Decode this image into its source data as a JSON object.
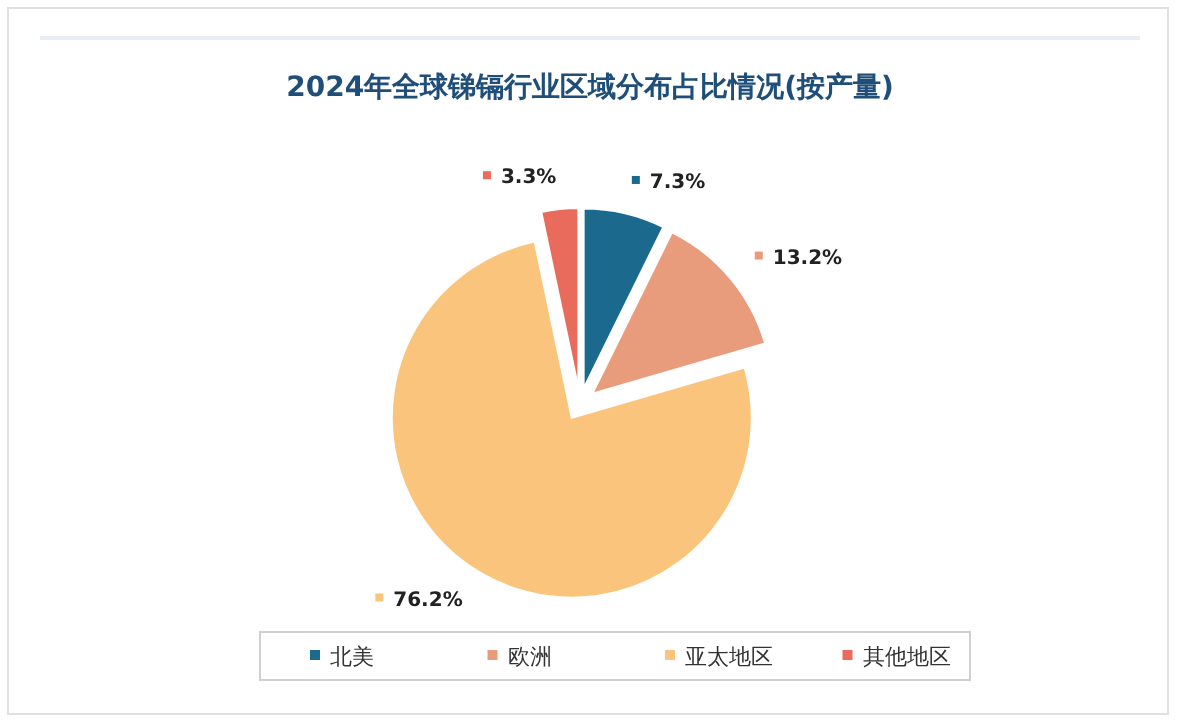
{
  "chart_data": {
    "type": "pie",
    "title": "2024年全球锑镉行业区域分布占比情况(按产量)",
    "categories": [
      "北美",
      "欧洲",
      "亚太地区",
      "其他地区"
    ],
    "values": [
      7.3,
      13.2,
      76.2,
      3.3
    ],
    "colors": [
      "#1b6a8e",
      "#e89c7c",
      "#fbc47c",
      "#e86b5c"
    ],
    "value_labels": [
      "7.3%",
      "13.2%",
      "76.2%",
      "3.3%"
    ],
    "legend": "bottom"
  }
}
